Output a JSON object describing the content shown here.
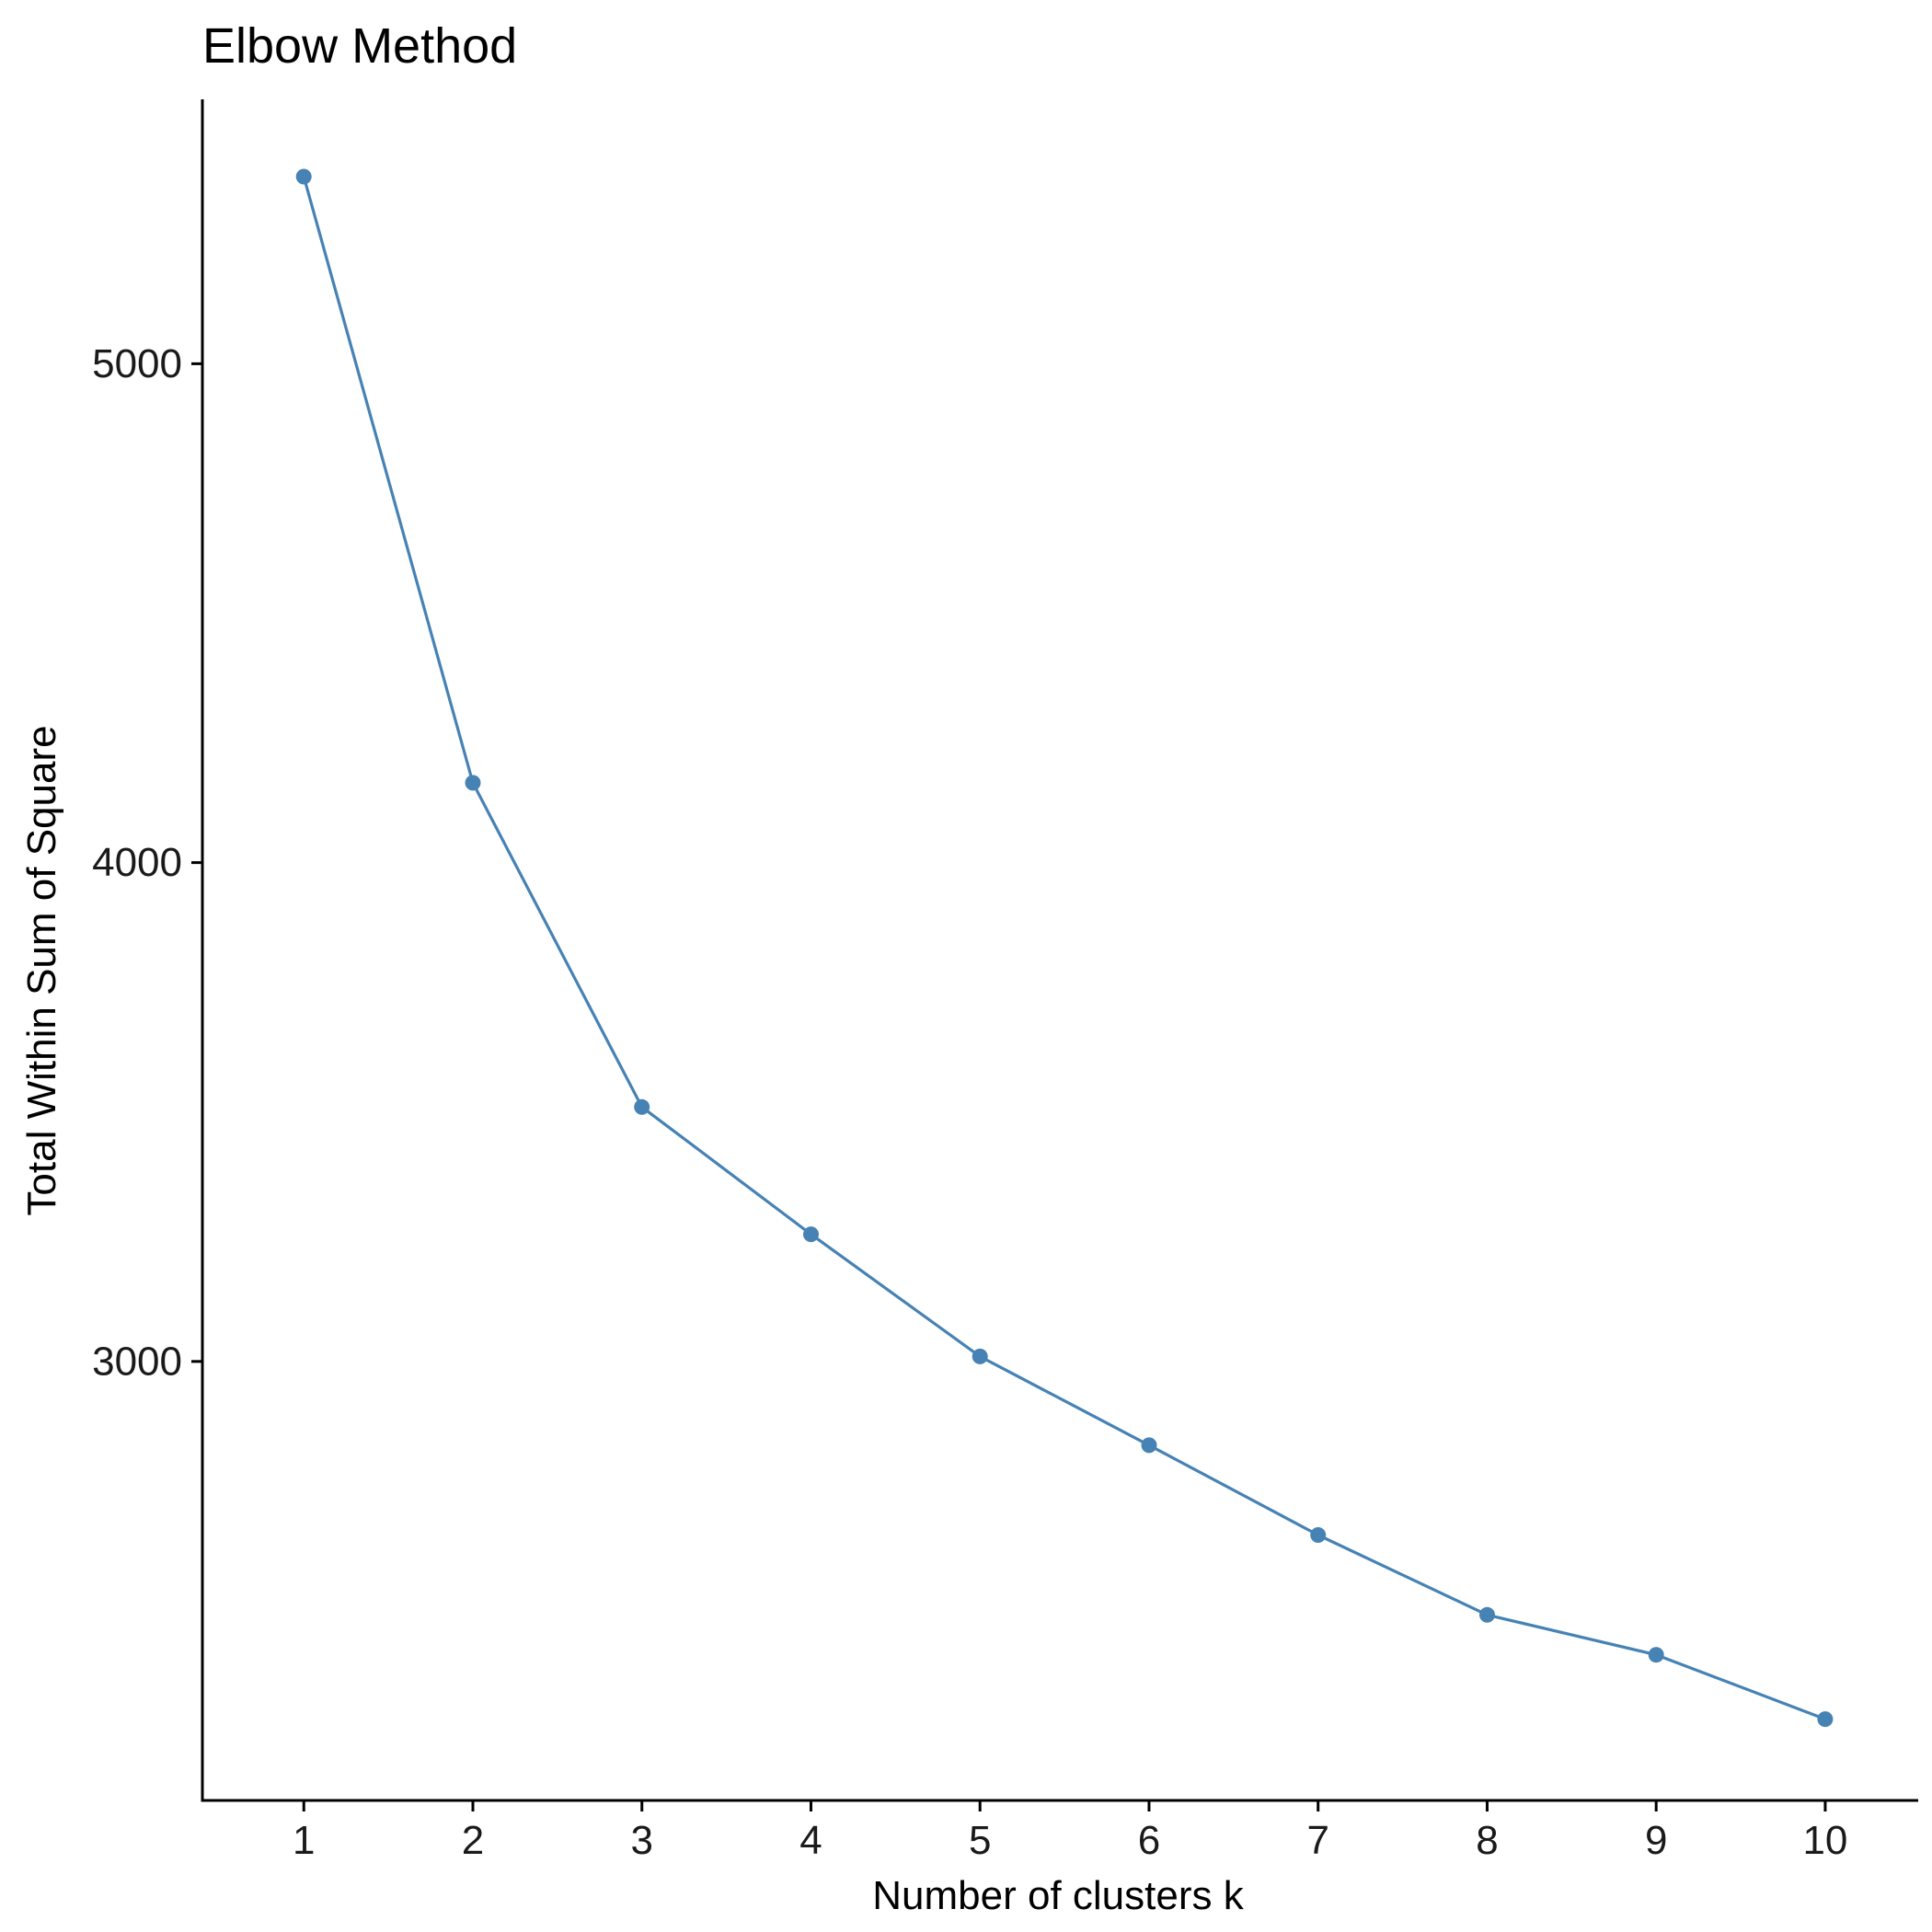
{
  "chart_data": {
    "type": "line",
    "title": "Elbow Method",
    "xlabel": "Number of clusters k",
    "ylabel": "Total Within Sum of Square",
    "x": [
      1,
      2,
      3,
      4,
      5,
      6,
      7,
      8,
      9,
      10
    ],
    "categories": [
      "1",
      "2",
      "3",
      "4",
      "5",
      "6",
      "7",
      "8",
      "9",
      "10"
    ],
    "series": [
      {
        "values": [
          5375,
          4160,
          3510,
          3255,
          3010,
          2832,
          2652,
          2492,
          2412,
          2283
        ]
      }
    ],
    "xlim": [
      0.4,
      10.55
    ],
    "ylim": [
      2120,
      5530
    ],
    "yticks": [
      3000,
      4000,
      5000
    ],
    "ytick_labels": [
      "3000",
      "4000",
      "5000"
    ],
    "grid": false,
    "legend": "none",
    "colors": {
      "series": "#4682B4",
      "axis": "#000000",
      "text": "#1a1a1a"
    }
  }
}
